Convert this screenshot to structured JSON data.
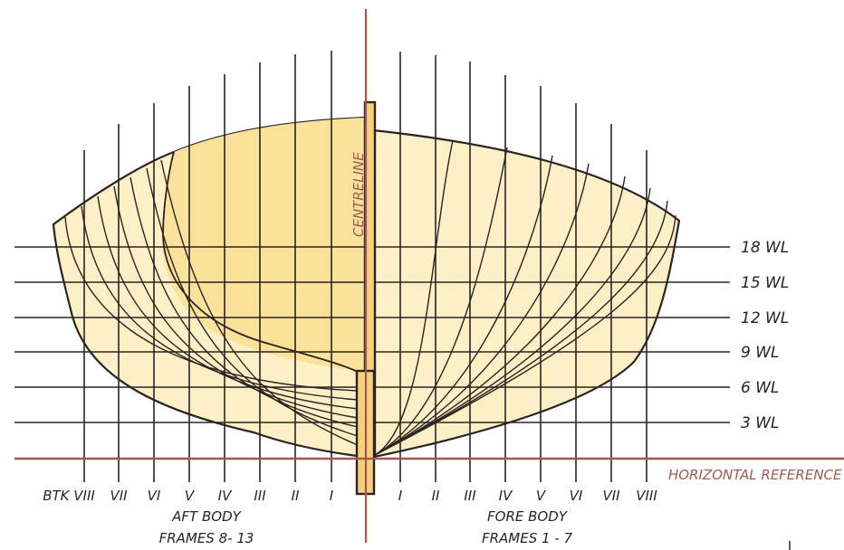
{
  "diagram": {
    "centreline_label": "CENTRELINE",
    "horizontal_reference_label": "HORIZONTAL REFERENCE",
    "waterlines": [
      "18 WL",
      "15 WL",
      "12 WL",
      "9 WL",
      "6 WL",
      "3 WL"
    ],
    "aft_body": {
      "buttocks": [
        "BTK VIII",
        "VII",
        "VI",
        "V",
        "IV",
        "III",
        "II",
        "I"
      ],
      "caption_line1": "AFT BODY",
      "caption_line2": "FRAMES 8- 13"
    },
    "fore_body": {
      "buttocks": [
        "I",
        "II",
        "III",
        "IV",
        "V",
        "VI",
        "VII",
        "VIII"
      ],
      "caption_line1": "FORE BODY",
      "caption_line2": "FRAMES 1 - 7"
    },
    "colors": {
      "hull_light": "#fdf0c6",
      "hull_mid": "#fbe39a",
      "hull_dark": "#f8d98a",
      "reference_lines": "#a5584d",
      "outline": "#2b2321",
      "keel": "#f7d17a"
    }
  }
}
